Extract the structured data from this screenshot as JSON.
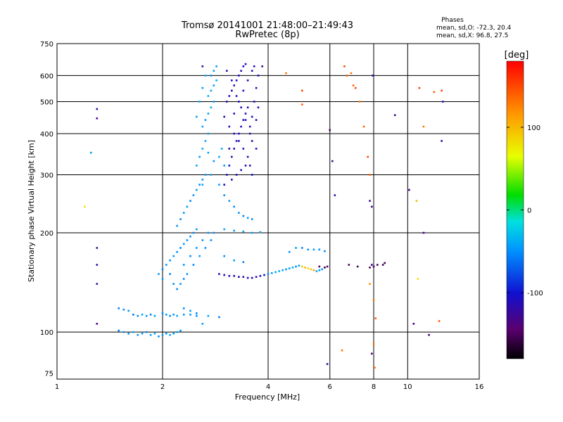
{
  "chart_data": {
    "type": "scatter",
    "title": "Tromsø 20141001 21:48:00–21:49:43",
    "subtitle": "RwPretec (8p)",
    "xlabel": "Frequency [MHz]",
    "ylabel": "Stationary phase Virtual Height [km]",
    "x_scale": "log",
    "y_scale": "log",
    "xlim": [
      1,
      16
    ],
    "ylim": [
      72,
      750
    ],
    "x_ticks": [
      1,
      2,
      4,
      6,
      8,
      10,
      16
    ],
    "x_tick_labels": [
      "1",
      "2",
      "4",
      "6",
      "8",
      "10",
      "16"
    ],
    "y_ticks": [
      75,
      100,
      200,
      300,
      400,
      500,
      600,
      750
    ],
    "y_tick_labels": [
      "75",
      "100",
      "200",
      "300",
      "400",
      "500",
      "600",
      "750"
    ],
    "grid": true,
    "phase_info": {
      "heading": "Phases",
      "line_o": "mean, sd,O: -72.3, 20.4",
      "line_x": "mean, sd,X:  96.8, 27.5"
    },
    "colorbar": {
      "label": "[deg]",
      "ticks": [
        100,
        0,
        -100
      ],
      "tick_labels": [
        "100",
        "0",
        "-100"
      ],
      "range": [
        -180,
        180
      ]
    },
    "points": [
      [
        1.55,
        100,
        -45
      ],
      [
        1.6,
        99,
        -50
      ],
      [
        1.65,
        100,
        -40
      ],
      [
        1.7,
        98,
        -48
      ],
      [
        1.75,
        99,
        -42
      ],
      [
        1.8,
        100,
        -55
      ],
      [
        1.85,
        98,
        -45
      ],
      [
        1.9,
        99,
        -38
      ],
      [
        1.95,
        97,
        -50
      ],
      [
        2.0,
        98,
        -45
      ],
      [
        2.05,
        99,
        -52
      ],
      [
        2.1,
        98,
        -40
      ],
      [
        2.15,
        99,
        -47
      ],
      [
        2.2,
        100,
        -43
      ],
      [
        2.25,
        101,
        -50
      ],
      [
        1.5,
        101,
        -60
      ],
      [
        1.5,
        118,
        -55
      ],
      [
        1.55,
        117,
        -50
      ],
      [
        1.6,
        116,
        -45
      ],
      [
        1.65,
        113,
        -60
      ],
      [
        1.7,
        112,
        -50
      ],
      [
        1.75,
        113,
        -42
      ],
      [
        1.8,
        112,
        -48
      ],
      [
        1.85,
        113,
        -55
      ],
      [
        1.9,
        112,
        -45
      ],
      [
        2.0,
        114,
        -50
      ],
      [
        2.05,
        113,
        -45
      ],
      [
        2.1,
        112,
        -55
      ],
      [
        2.15,
        113,
        -48
      ],
      [
        2.2,
        112,
        -40
      ],
      [
        2.3,
        113,
        -50
      ],
      [
        2.4,
        113,
        -45
      ],
      [
        2.5,
        112,
        -52
      ],
      [
        2.6,
        106,
        -45
      ],
      [
        2.3,
        118,
        -50
      ],
      [
        2.4,
        116,
        -45
      ],
      [
        2.5,
        114,
        -55
      ],
      [
        2.7,
        112,
        -40
      ],
      [
        2.9,
        111,
        -60
      ],
      [
        2.2,
        135,
        -52
      ],
      [
        2.25,
        140,
        -48
      ],
      [
        2.3,
        145,
        -55
      ],
      [
        1.95,
        150,
        -45
      ],
      [
        2.0,
        155,
        -55
      ],
      [
        2.05,
        160,
        -48
      ],
      [
        2.1,
        165,
        -52
      ],
      [
        2.15,
        170,
        -45
      ],
      [
        2.2,
        175,
        -50
      ],
      [
        2.25,
        180,
        -55
      ],
      [
        2.3,
        185,
        -45
      ],
      [
        2.35,
        190,
        -50
      ],
      [
        2.4,
        195,
        -48
      ],
      [
        2.45,
        200,
        -55
      ],
      [
        2.5,
        205,
        -45
      ],
      [
        2.2,
        210,
        -50
      ],
      [
        2.25,
        220,
        -52
      ],
      [
        2.3,
        230,
        -48
      ],
      [
        2.35,
        240,
        -45
      ],
      [
        2.4,
        250,
        -55
      ],
      [
        2.45,
        260,
        -50
      ],
      [
        2.5,
        270,
        -45
      ],
      [
        2.55,
        280,
        -52
      ],
      [
        2.6,
        290,
        -48
      ],
      [
        2.65,
        300,
        -45
      ],
      [
        2.3,
        160,
        -50
      ],
      [
        2.4,
        170,
        -55
      ],
      [
        2.5,
        180,
        -45
      ],
      [
        2.6,
        190,
        -50
      ],
      [
        2.7,
        200,
        -48
      ],
      [
        2.1,
        150,
        -55
      ],
      [
        2.0,
        145,
        -45
      ],
      [
        2.15,
        140,
        -52
      ],
      [
        2.35,
        150,
        -48
      ],
      [
        2.45,
        160,
        -55
      ],
      [
        2.55,
        170,
        -45
      ],
      [
        2.65,
        180,
        -50
      ],
      [
        2.75,
        190,
        -52
      ],
      [
        2.8,
        200,
        -48
      ],
      [
        2.5,
        320,
        -40
      ],
      [
        2.55,
        340,
        -45
      ],
      [
        2.6,
        360,
        -38
      ],
      [
        2.65,
        380,
        -42
      ],
      [
        2.7,
        400,
        -45
      ],
      [
        2.6,
        420,
        -40
      ],
      [
        2.65,
        440,
        -48
      ],
      [
        2.7,
        460,
        -42
      ],
      [
        2.75,
        480,
        -38
      ],
      [
        2.8,
        500,
        -45
      ],
      [
        2.7,
        520,
        -40
      ],
      [
        2.75,
        540,
        -42
      ],
      [
        2.8,
        560,
        -45
      ],
      [
        2.85,
        580,
        -38
      ],
      [
        2.75,
        600,
        -48
      ],
      [
        2.8,
        620,
        -40
      ],
      [
        2.85,
        640,
        -45
      ],
      [
        2.5,
        450,
        -42
      ],
      [
        2.55,
        500,
        -40
      ],
      [
        2.6,
        550,
        -45
      ],
      [
        2.65,
        600,
        -38
      ],
      [
        2.7,
        350,
        -42
      ],
      [
        2.8,
        330,
        -45
      ],
      [
        2.9,
        340,
        -40
      ],
      [
        2.95,
        360,
        -38
      ],
      [
        3.0,
        320,
        -45
      ],
      [
        2.75,
        300,
        -42
      ],
      [
        2.6,
        280,
        -40
      ],
      [
        2.9,
        280,
        -45
      ],
      [
        3.0,
        280,
        -110
      ],
      [
        3.05,
        300,
        -115
      ],
      [
        3.1,
        320,
        -105
      ],
      [
        3.15,
        340,
        -120
      ],
      [
        3.2,
        360,
        -110
      ],
      [
        3.25,
        380,
        -115
      ],
      [
        3.3,
        400,
        -108
      ],
      [
        3.35,
        420,
        -112
      ],
      [
        3.4,
        440,
        -118
      ],
      [
        3.45,
        460,
        -105
      ],
      [
        3.5,
        480,
        -110
      ],
      [
        3.05,
        500,
        -115
      ],
      [
        3.1,
        520,
        -108
      ],
      [
        3.15,
        540,
        -112
      ],
      [
        3.2,
        560,
        -118
      ],
      [
        3.25,
        580,
        -105
      ],
      [
        3.3,
        600,
        -110
      ],
      [
        3.35,
        620,
        -115
      ],
      [
        3.4,
        640,
        -108
      ],
      [
        3.45,
        650,
        -112
      ],
      [
        3.0,
        450,
        -118
      ],
      [
        3.1,
        420,
        -105
      ],
      [
        3.2,
        400,
        -110
      ],
      [
        3.3,
        380,
        -115
      ],
      [
        3.4,
        360,
        -108
      ],
      [
        3.5,
        340,
        -112
      ],
      [
        3.55,
        320,
        -118
      ],
      [
        3.6,
        300,
        -105
      ],
      [
        3.15,
        290,
        -110
      ],
      [
        3.25,
        300,
        -115
      ],
      [
        3.35,
        310,
        -108
      ],
      [
        3.45,
        320,
        -112
      ],
      [
        3.55,
        400,
        -118
      ],
      [
        3.6,
        450,
        -105
      ],
      [
        3.65,
        500,
        -110
      ],
      [
        3.7,
        550,
        -115
      ],
      [
        3.75,
        600,
        -108
      ],
      [
        3.65,
        640,
        -112
      ],
      [
        3.05,
        620,
        -118
      ],
      [
        3.15,
        580,
        -105
      ],
      [
        3.25,
        520,
        -110
      ],
      [
        3.35,
        480,
        -115
      ],
      [
        3.45,
        440,
        -108
      ],
      [
        3.55,
        420,
        -112
      ],
      [
        3.6,
        380,
        -118
      ],
      [
        3.7,
        360,
        -105
      ],
      [
        3.2,
        460,
        -110
      ],
      [
        3.3,
        500,
        -115
      ],
      [
        3.4,
        540,
        -108
      ],
      [
        3.5,
        580,
        -112
      ],
      [
        3.6,
        620,
        -118
      ],
      [
        3.7,
        440,
        -105
      ],
      [
        3.75,
        480,
        -110
      ],
      [
        3.1,
        360,
        -115
      ],
      [
        3.0,
        260,
        -50
      ],
      [
        3.1,
        250,
        -45
      ],
      [
        3.2,
        240,
        -52
      ],
      [
        3.3,
        230,
        -48
      ],
      [
        3.4,
        225,
        -55
      ],
      [
        3.5,
        222,
        -45
      ],
      [
        3.6,
        220,
        -50
      ],
      [
        3.0,
        205,
        -40
      ],
      [
        3.2,
        203,
        -45
      ],
      [
        3.4,
        202,
        -38
      ],
      [
        3.6,
        200,
        -42
      ],
      [
        3.8,
        201,
        -45
      ],
      [
        3.0,
        170,
        -50
      ],
      [
        3.2,
        165,
        -45
      ],
      [
        3.4,
        163,
        -55
      ],
      [
        2.9,
        150,
        -110
      ],
      [
        3.0,
        149,
        -115
      ],
      [
        3.1,
        148,
        -105
      ],
      [
        3.2,
        148,
        -120
      ],
      [
        3.3,
        147,
        -110
      ],
      [
        3.4,
        147,
        -115
      ],
      [
        3.5,
        146,
        -108
      ],
      [
        3.6,
        146,
        -112
      ],
      [
        3.7,
        147,
        -118
      ],
      [
        3.8,
        148,
        -105
      ],
      [
        3.9,
        149,
        -110
      ],
      [
        4.0,
        150,
        -50
      ],
      [
        4.1,
        151,
        -45
      ],
      [
        4.2,
        152,
        -40
      ],
      [
        4.3,
        153,
        -35
      ],
      [
        4.4,
        154,
        -42
      ],
      [
        4.5,
        155,
        -50
      ],
      [
        4.6,
        156,
        -45
      ],
      [
        4.7,
        157,
        -40
      ],
      [
        4.8,
        158,
        -50
      ],
      [
        4.9,
        159,
        -45
      ],
      [
        5.0,
        158,
        90
      ],
      [
        5.1,
        157,
        100
      ],
      [
        5.2,
        156,
        85
      ],
      [
        5.3,
        155,
        95
      ],
      [
        5.4,
        154,
        110
      ],
      [
        5.5,
        153,
        -40
      ],
      [
        5.6,
        154,
        -45
      ],
      [
        5.7,
        155,
        -50
      ],
      [
        4.6,
        175,
        -50
      ],
      [
        4.8,
        180,
        -45
      ],
      [
        5.0,
        180,
        -55
      ],
      [
        5.2,
        178,
        -48
      ],
      [
        5.4,
        178,
        -45
      ],
      [
        5.6,
        178,
        -50
      ],
      [
        5.8,
        176,
        -52
      ],
      [
        5.6,
        158,
        -150
      ],
      [
        5.8,
        157,
        -155
      ],
      [
        5.9,
        158,
        -150
      ],
      [
        6.8,
        160,
        -150
      ],
      [
        7.2,
        158,
        -155
      ],
      [
        7.8,
        157,
        -150
      ],
      [
        8.0,
        158,
        -155
      ],
      [
        8.2,
        160,
        -150
      ],
      [
        8.5,
        160,
        -155
      ],
      [
        8.6,
        162,
        -150
      ],
      [
        1.3,
        475,
        -120
      ],
      [
        1.3,
        445,
        -130
      ],
      [
        1.25,
        350,
        -45
      ],
      [
        1.2,
        240,
        80
      ],
      [
        1.3,
        180,
        -130
      ],
      [
        1.3,
        160,
        -110
      ],
      [
        1.3,
        140,
        -120
      ],
      [
        1.3,
        106,
        -130
      ],
      [
        2.6,
        640,
        -120
      ],
      [
        3.85,
        640,
        -130
      ],
      [
        4.5,
        610,
        130
      ],
      [
        5.0,
        540,
        150
      ],
      [
        5.0,
        490,
        140
      ],
      [
        6.0,
        410,
        -150
      ],
      [
        6.1,
        330,
        -120
      ],
      [
        6.2,
        260,
        -120
      ],
      [
        6.6,
        640,
        150
      ],
      [
        6.7,
        600,
        140
      ],
      [
        6.9,
        610,
        130
      ],
      [
        7.0,
        560,
        140
      ],
      [
        7.1,
        550,
        150
      ],
      [
        7.3,
        500,
        130
      ],
      [
        7.5,
        420,
        140
      ],
      [
        7.7,
        340,
        150
      ],
      [
        7.8,
        300,
        140
      ],
      [
        7.8,
        250,
        -130
      ],
      [
        7.9,
        240,
        -130
      ],
      [
        7.95,
        600,
        -120
      ],
      [
        7.9,
        160,
        -130
      ],
      [
        7.8,
        140,
        120
      ],
      [
        8.0,
        125,
        130
      ],
      [
        8.1,
        110,
        140
      ],
      [
        8.0,
        92,
        130
      ],
      [
        8.05,
        78,
        140
      ],
      [
        6.5,
        88,
        130
      ],
      [
        5.9,
        80,
        -120
      ],
      [
        7.9,
        86,
        -130
      ],
      [
        9.2,
        455,
        -130
      ],
      [
        10.8,
        550,
        150
      ],
      [
        11.9,
        535,
        140
      ],
      [
        12.5,
        540,
        150
      ],
      [
        11.1,
        420,
        130
      ],
      [
        10.6,
        250,
        100
      ],
      [
        10.1,
        270,
        -130
      ],
      [
        11.1,
        200,
        -130
      ],
      [
        10.7,
        145,
        80
      ],
      [
        10.4,
        106,
        -130
      ],
      [
        11.5,
        98,
        -130
      ],
      [
        12.3,
        108,
        140
      ],
      [
        12.5,
        380,
        -120
      ],
      [
        12.6,
        500,
        -110
      ]
    ]
  }
}
